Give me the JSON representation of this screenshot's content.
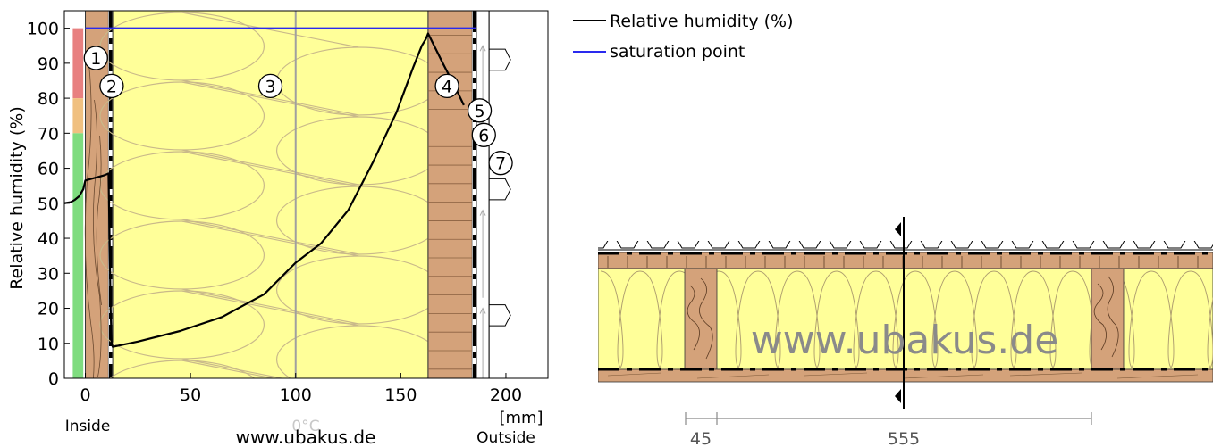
{
  "chart_data": {
    "type": "line",
    "title": "",
    "xlabel": "[mm]",
    "ylabel": "Relative humidity (%)",
    "xlim": [
      -10,
      220
    ],
    "ylim": [
      0,
      105
    ],
    "x_ticks": [
      "0",
      "50",
      "100",
      "150",
      "200"
    ],
    "y_ticks": [
      "0",
      "10",
      "20",
      "30",
      "40",
      "50",
      "60",
      "70",
      "80",
      "90",
      "100"
    ],
    "grid": false,
    "legend_position": "top-right",
    "inside_label": "Inside",
    "outside_label": "Outside",
    "watermark": "www.ubakus.de",
    "center_marker": "0°C",
    "colors": {
      "humidity_line": "#000000",
      "saturation_line": "#2a2aee",
      "wood": "#d4a27a",
      "insulation": "#ffff99",
      "zone_red": "#e88080",
      "zone_orange": "#f0c080",
      "zone_green": "#7fdc7f"
    },
    "layers": [
      {
        "number": "1",
        "material": "wood",
        "from_mm": 0,
        "to_mm": 11
      },
      {
        "number": "2",
        "material": "membrane",
        "from_mm": 11,
        "to_mm": 13
      },
      {
        "number": "3",
        "material": "insulation",
        "from_mm": 13,
        "to_mm": 163
      },
      {
        "number": "4",
        "material": "wood",
        "from_mm": 163,
        "to_mm": 184
      },
      {
        "number": "5",
        "material": "membrane",
        "from_mm": 184,
        "to_mm": 186
      },
      {
        "number": "6",
        "material": "air",
        "from_mm": 186,
        "to_mm": 192
      },
      {
        "number": "7",
        "material": "roofing",
        "from_mm": 192,
        "to_mm": 200
      }
    ],
    "series": [
      {
        "name": "Relative humidity (%)",
        "x": [
          -10,
          -7,
          -5,
          -3,
          -1,
          0,
          3,
          6,
          9,
          11,
          11.5,
          12,
          12.5,
          13,
          25,
          45,
          65,
          85,
          100,
          112,
          125,
          137,
          148,
          156,
          160,
          162,
          163,
          170,
          176,
          180
        ],
        "y": [
          50,
          50.3,
          51,
          52,
          54,
          56.5,
          57,
          57.5,
          58,
          58.5,
          40,
          20,
          10,
          9,
          10.5,
          13.5,
          17.5,
          24,
          33,
          38.5,
          48,
          62,
          76,
          89,
          95,
          97,
          98.5,
          90,
          83,
          78
        ]
      },
      {
        "name": "saturation point",
        "x": [
          0,
          186
        ],
        "y": [
          100,
          100
        ]
      }
    ],
    "comfort_zones": [
      {
        "color": "red",
        "from": 80,
        "to": 100
      },
      {
        "color": "orange",
        "from": 70,
        "to": 80
      },
      {
        "color": "green",
        "from": 0,
        "to": 70
      }
    ]
  },
  "section_drawing": {
    "watermark": "www.ubakus.de",
    "dimensions": [
      "45",
      "555"
    ]
  }
}
